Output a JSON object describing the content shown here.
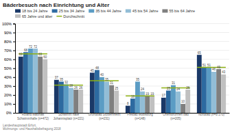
{
  "chart_data": {
    "type": "bar",
    "title": "Bäderbesuch nach Einrichtung und Alter",
    "source": "Landeshauptstadt Erfurt,\nWohnungs- und Haushaltsbefragung 2018",
    "categories": [
      "Roland Matthias\nSchwimmhalle (n=472)",
      "Schwimm halle\nJohannisplatz (n=221)",
      "Grundbad Stotternheim\n(n=231)",
      "Freibad Möbisburg\n(n=148)",
      "Orientbrunnen bad\n(n=205)",
      "Nordbad (n=d 170)"
    ],
    "series": [
      {
        "name": "18 bis 24 Jahre",
        "color": "#1a3867",
        "values": [
          63,
          37,
          45,
          8,
          17,
          65
        ]
      },
      {
        "name": "25 bis 34 Jahre",
        "color": "#2d6aa0",
        "values": [
          68,
          35,
          48,
          16,
          25,
          51
        ]
      },
      {
        "name": "35 bis 44 Jahre",
        "color": "#5b9cc4",
        "values": [
          72,
          32,
          40,
          35,
          31,
          51
        ]
      },
      {
        "name": "45 bis 54 Jahre",
        "color": "#92bdd6",
        "values": [
          72,
          28,
          35,
          24,
          24,
          46
        ]
      },
      {
        "name": "55 bis 64 Jahre",
        "color": "#7f7f7f",
        "values": [
          63,
          26,
          31,
          19,
          10,
          49
        ]
      },
      {
        "name": "65 Jahre und älter",
        "color": "#c0c0c0",
        "values": [
          60,
          26,
          25,
          19,
          26,
          43
        ]
      },
      {
        "name": "Durchschnitt",
        "color": "#8db012",
        "type": "line",
        "values": [
          66,
          31,
          36,
          19,
          28,
          51
        ]
      }
    ],
    "ylim": [
      0,
      100
    ],
    "yticks": [
      {
        "value": 0,
        "label": "0%"
      },
      {
        "value": 10,
        "label": "10%"
      },
      {
        "value": 20,
        "label": "20%"
      },
      {
        "value": 30,
        "label": "30%"
      },
      {
        "value": 40,
        "label": "40%"
      },
      {
        "value": 50,
        "label": "50%"
      },
      {
        "value": 60,
        "label": "60%"
      },
      {
        "value": 70,
        "label": "70%"
      },
      {
        "value": 80,
        "label": "80%"
      },
      {
        "value": 90,
        "label": "90%"
      },
      {
        "value": 100,
        "label": "100%"
      }
    ],
    "grid": true,
    "legend": "top",
    "data_labels": true
  }
}
